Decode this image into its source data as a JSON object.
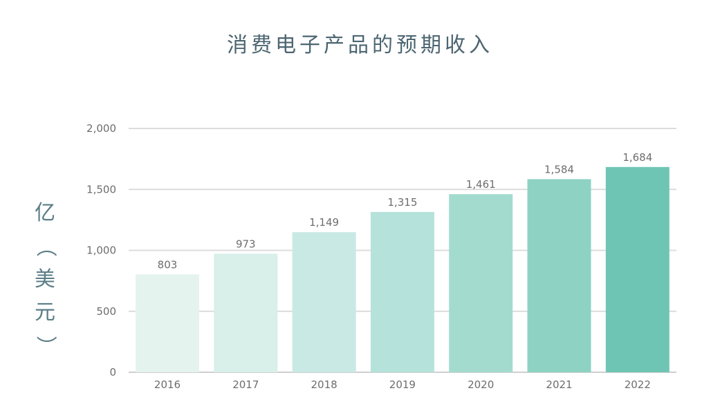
{
  "chart_data": {
    "type": "bar",
    "title": "消费电子产品的预期收入",
    "ylabel": "亿（美元）",
    "ylabel_chars": [
      "亿",
      "（",
      "美",
      "元",
      "）"
    ],
    "categories": [
      "2016",
      "2017",
      "2018",
      "2019",
      "2020",
      "2021",
      "2022"
    ],
    "values": [
      803,
      973,
      1149,
      1315,
      1461,
      1584,
      1684
    ],
    "value_labels": [
      "803",
      "973",
      "1,149",
      "1,315",
      "1,461",
      "1,584",
      "1,684"
    ],
    "ylim": [
      0,
      2000
    ],
    "yticks": [
      0,
      500,
      1000,
      1500,
      2000
    ],
    "ytick_labels": [
      "0",
      "500",
      "1,000",
      "1,500",
      "2,000"
    ],
    "grid": true,
    "bar_colors": [
      "#e5f3ee",
      "#d8efea",
      "#c9e9e4",
      "#b5e2da",
      "#a3dbcf",
      "#8dd2c3",
      "#6fc5b3"
    ]
  }
}
